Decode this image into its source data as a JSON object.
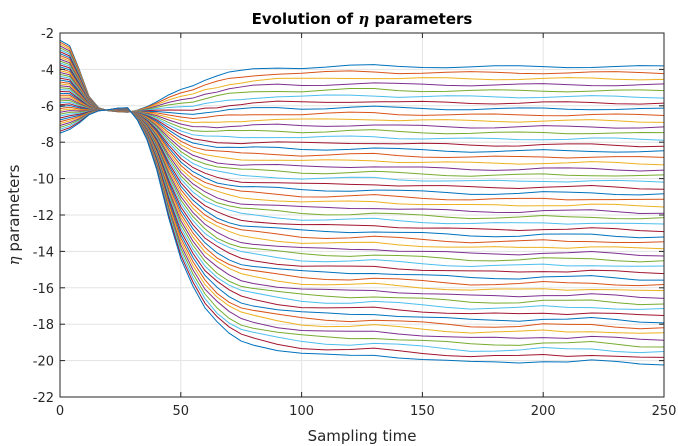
{
  "chart_data": {
    "type": "line",
    "title_prefix": "Evolution of ",
    "title_symbol": "η",
    "title_suffix": " parameters",
    "xlabel": "Sampling time",
    "ylabel_symbol": "η",
    "ylabel_suffix": " parameters",
    "xlim": [
      0,
      250
    ],
    "ylim": [
      -22,
      -2
    ],
    "xticks": [
      0,
      50,
      100,
      150,
      200,
      250
    ],
    "yticks": [
      -22,
      -20,
      -18,
      -16,
      -14,
      -12,
      -10,
      -8,
      -6,
      -4,
      -2
    ],
    "grid": true,
    "series_count": 50,
    "initial_range": [
      -7.5,
      -2.4
    ],
    "final_range": [
      -20.2,
      -3.8
    ],
    "crossover_point": [
      27,
      -6.1
    ],
    "x": [
      0,
      4,
      8,
      12,
      16,
      20,
      24,
      28,
      32,
      36,
      40,
      45,
      50,
      55,
      60,
      65,
      70,
      75,
      80,
      90,
      100,
      110,
      120,
      130,
      140,
      150,
      160,
      170,
      180,
      190,
      200,
      210,
      220,
      230,
      240,
      250
    ],
    "top_series": [
      -2.4,
      -2.7,
      -3.9,
      -5.2,
      -5.9,
      -6.1,
      -6.1,
      -6.1,
      -5.9,
      -5.7,
      -5.5,
      -5.3,
      -5.1,
      -4.9,
      -4.6,
      -4.4,
      -4.2,
      -4.1,
      -4.0,
      -3.9,
      -3.9,
      -3.85,
      -3.8,
      -3.8,
      -3.85,
      -3.85,
      -3.85,
      -3.85,
      -3.85,
      -3.85,
      -3.85,
      -3.85,
      -3.85,
      -3.85,
      -3.85,
      -3.85
    ],
    "bottom_series": [
      -7.5,
      -7.3,
      -7.0,
      -6.7,
      -6.6,
      -6.8,
      -7.2,
      -7.9,
      -8.8,
      -9.9,
      -11.2,
      -12.8,
      -14.4,
      -15.9,
      -17.1,
      -17.9,
      -18.5,
      -18.9,
      -19.1,
      -19.4,
      -19.6,
      -19.7,
      -19.75,
      -19.7,
      -19.8,
      -19.9,
      -20.0,
      -20.1,
      -20.1,
      -20.1,
      -20.0,
      -20.05,
      -20.0,
      -20.1,
      -20.2,
      -20.2
    ],
    "colors": [
      "#0072bd",
      "#d95319",
      "#edb120",
      "#7e2f8e",
      "#77ac30",
      "#4dbeee",
      "#a2142f"
    ]
  }
}
